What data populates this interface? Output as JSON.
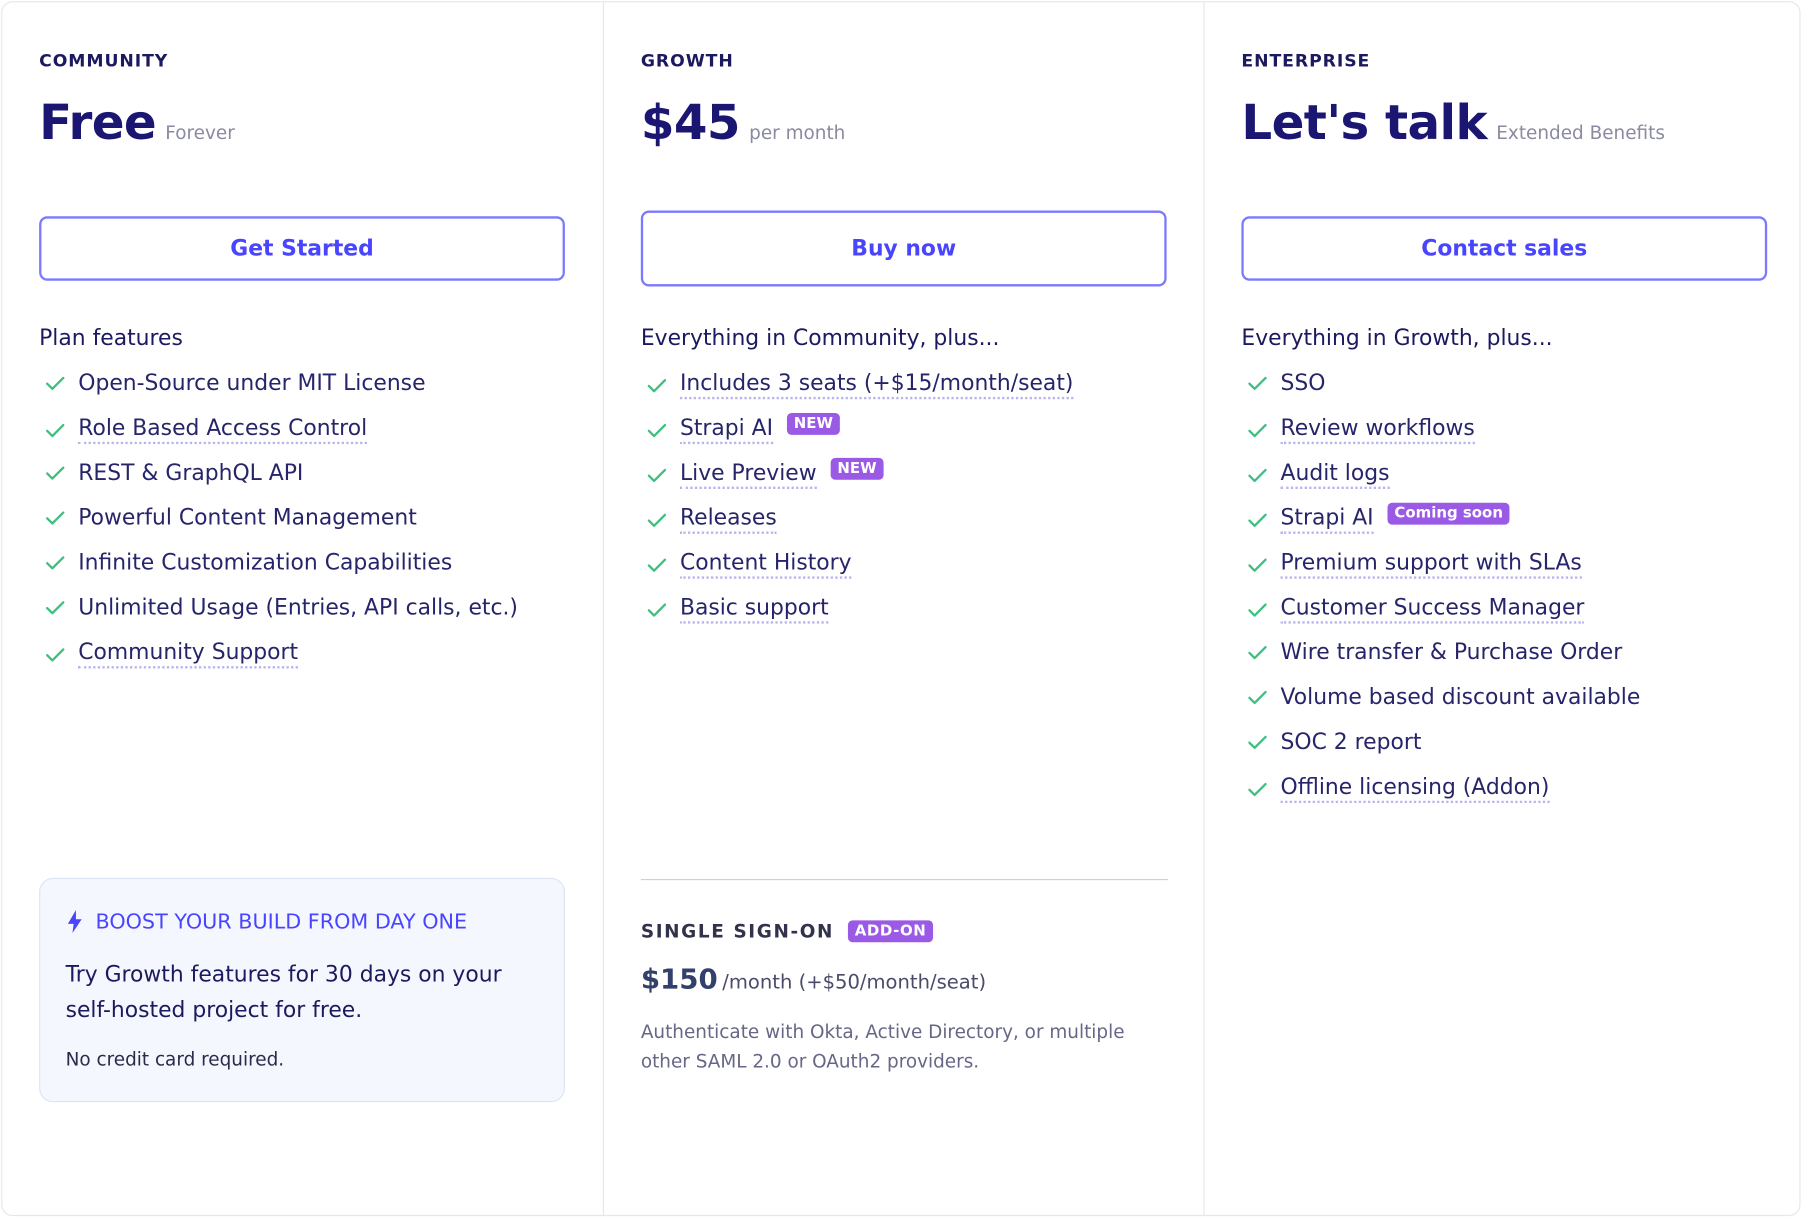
{
  "plans": [
    {
      "tier": "COMMUNITY",
      "price": "Free",
      "price_note": "Forever",
      "button": "Get Started",
      "features_heading": "Plan features",
      "features": [
        {
          "text": "Open-Source under MIT License",
          "dotted": false
        },
        {
          "text": "Role Based Access Control",
          "dotted": true
        },
        {
          "text": "REST & GraphQL API",
          "dotted": false
        },
        {
          "text": "Powerful Content Management",
          "dotted": false
        },
        {
          "text": "Infinite Customization Capabilities",
          "dotted": false
        },
        {
          "text": "Unlimited Usage (Entries, API calls, etc.)",
          "dotted": false
        },
        {
          "text": "Community Support",
          "dotted": true
        }
      ],
      "promo": {
        "title": "BOOST YOUR BUILD FROM DAY ONE",
        "text": "Try Growth features for 30 days on your self-hosted project for free.",
        "note": "No credit card required."
      }
    },
    {
      "tier": "GROWTH",
      "price": "$45",
      "price_note": "per month",
      "button": "Buy now",
      "features_heading": "Everything in Community, plus...",
      "features": [
        {
          "text": "Includes 3 seats (+$15/month/seat)",
          "dotted": true
        },
        {
          "text": "Strapi AI",
          "dotted": true,
          "badge": "NEW"
        },
        {
          "text": "Live Preview",
          "dotted": true,
          "badge": "NEW"
        },
        {
          "text": "Releases",
          "dotted": true
        },
        {
          "text": "Content History",
          "dotted": true
        },
        {
          "text": "Basic support",
          "dotted": true
        }
      ],
      "addon": {
        "title": "SINGLE SIGN-ON",
        "badge": "ADD-ON",
        "price": "$150",
        "price_note": "/month (+$50/month/seat)",
        "description": "Authenticate with Okta, Active Directory, or multiple other SAML 2.0 or OAuth2 providers."
      }
    },
    {
      "tier": "ENTERPRISE",
      "price": "Let's talk",
      "price_note": "Extended Benefits",
      "button": "Contact sales",
      "features_heading": "Everything in Growth, plus...",
      "features": [
        {
          "text": "SSO",
          "dotted": false
        },
        {
          "text": "Review workflows",
          "dotted": true
        },
        {
          "text": "Audit logs",
          "dotted": true
        },
        {
          "text": "Strapi AI",
          "dotted": true,
          "badge": "Coming soon"
        },
        {
          "text": "Premium support with SLAs",
          "dotted": true
        },
        {
          "text": "Customer Success Manager",
          "dotted": true
        },
        {
          "text": "Wire transfer & Purchase Order",
          "dotted": false
        },
        {
          "text": "Volume based discount available",
          "dotted": false
        },
        {
          "text": "SOC 2 report",
          "dotted": false
        },
        {
          "text": "Offline licensing (Addon)",
          "dotted": true
        }
      ]
    }
  ]
}
